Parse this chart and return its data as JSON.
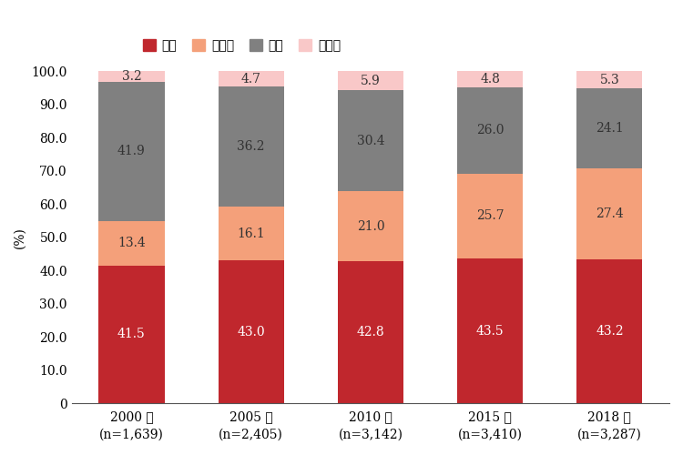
{
  "years": [
    "2000 年\n(n=1,639)",
    "2005 年\n(n=2,405)",
    "2010 年\n(n=3,142)",
    "2015 年\n(n=3,410)",
    "2018 年\n(n=3,287)"
  ],
  "categories": [
    "欧州",
    "アジア",
    "北米",
    "その他"
  ],
  "values": {
    "欧州": [
      41.5,
      43.0,
      42.8,
      43.5,
      43.2
    ],
    "アジア": [
      13.4,
      16.1,
      21.0,
      25.7,
      27.4
    ],
    "北米": [
      41.9,
      36.2,
      30.4,
      26.0,
      24.1
    ],
    "その他": [
      3.2,
      4.7,
      5.9,
      4.8,
      5.3
    ]
  },
  "colors": {
    "欧州": "#c0272d",
    "アジア": "#f4a07a",
    "北米": "#808080",
    "その他": "#f9c8c8"
  },
  "ylabel": "(%)",
  "ylim": [
    0,
    100
  ],
  "yticks": [
    0,
    10.0,
    20.0,
    30.0,
    40.0,
    50.0,
    60.0,
    70.0,
    80.0,
    90.0,
    100.0
  ],
  "bar_width": 0.55,
  "label_color_white": "#ffffff",
  "label_color_dark": "#333333",
  "legend_fontsize": 11,
  "tick_fontsize": 10,
  "value_fontsize": 10,
  "ylabel_fontsize": 10
}
